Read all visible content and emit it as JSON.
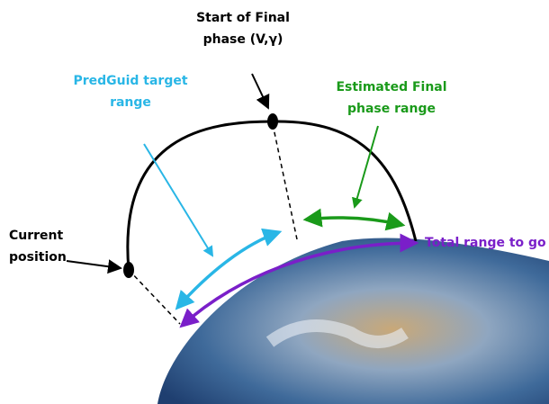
{
  "annotations": [
    {
      "id": "start",
      "lines": [
        "Start of Final",
        "phase (V,γ)"
      ]
    },
    {
      "id": "predguid",
      "lines": [
        "PredGuid target",
        "range"
      ]
    },
    {
      "id": "estimated",
      "lines": [
        "Estimated Final",
        "phase range"
      ]
    },
    {
      "id": "current",
      "lines": [
        "Current",
        "position"
      ]
    },
    {
      "id": "total",
      "lines": [
        "Total range to go"
      ]
    }
  ]
}
